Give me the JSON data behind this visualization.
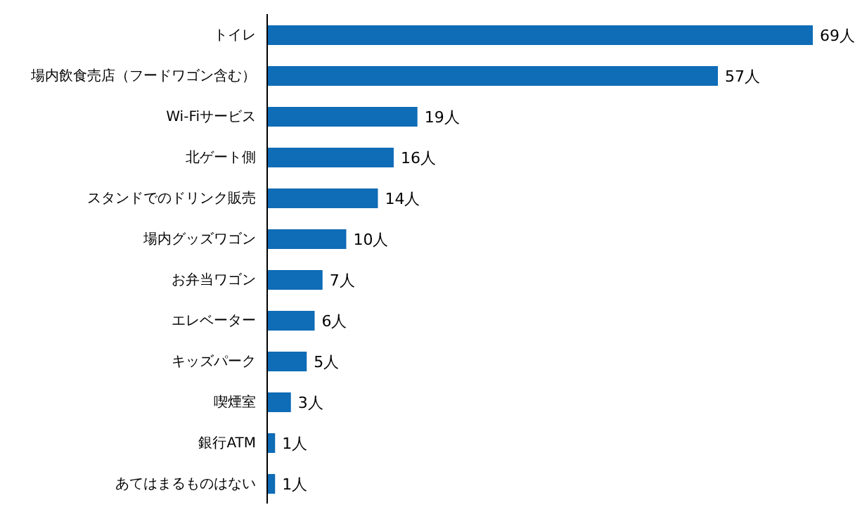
{
  "chart_data": {
    "type": "bar",
    "orientation": "horizontal",
    "categories": [
      "トイレ",
      "場内飲食売店（フードワゴン含む）",
      "Wi-Fiサービス",
      "北ゲート側",
      "スタンドでのドリンク販売",
      "場内グッズワゴン",
      "お弁当ワゴン",
      "エレベーター",
      "キッズパーク",
      "喫煙室",
      "銀行ATM",
      "あてはまるものはない"
    ],
    "values": [
      69,
      57,
      19,
      16,
      14,
      10,
      7,
      6,
      5,
      3,
      1,
      1
    ],
    "value_labels": [
      "69人",
      "57人",
      "19人",
      "16人",
      "14人",
      "10人",
      "7人",
      "6人",
      "5人",
      "3人",
      "1人",
      "1人"
    ],
    "color": "#0f6cb6",
    "grid": false,
    "legend": false,
    "tick_labels": "y"
  }
}
